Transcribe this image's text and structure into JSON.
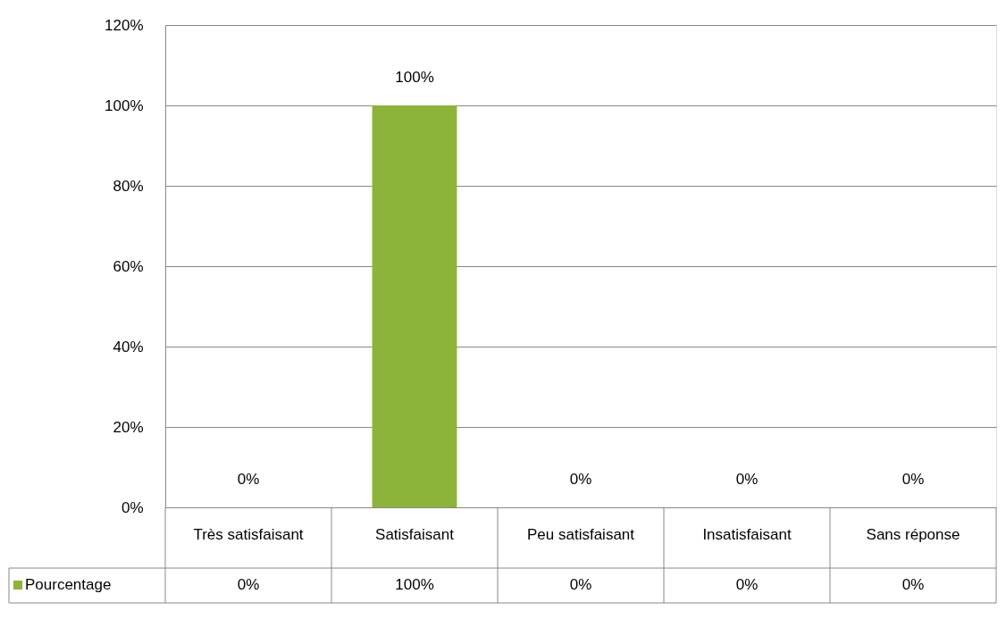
{
  "chart_data": {
    "type": "bar",
    "categories": [
      "Très satisfaisant",
      "Satisfaisant",
      "Peu satisfaisant",
      "Insatisfaisant",
      "Sans réponse"
    ],
    "series": [
      {
        "name": "Pourcentage",
        "color": "#8db33a",
        "values": [
          0,
          100,
          0,
          0,
          0
        ],
        "value_labels": [
          "0%",
          "100%",
          "0%",
          "0%",
          "0%"
        ]
      }
    ],
    "ylim": [
      0,
      120
    ],
    "yticks": [
      {
        "value": 0,
        "label": "0%"
      },
      {
        "value": 20,
        "label": "20%"
      },
      {
        "value": 40,
        "label": "40%"
      },
      {
        "value": 60,
        "label": "60%"
      },
      {
        "value": 80,
        "label": "80%"
      },
      {
        "value": 100,
        "label": "100%"
      },
      {
        "value": 120,
        "label": "120%"
      }
    ],
    "grid": "y",
    "legend": "bottom left"
  }
}
